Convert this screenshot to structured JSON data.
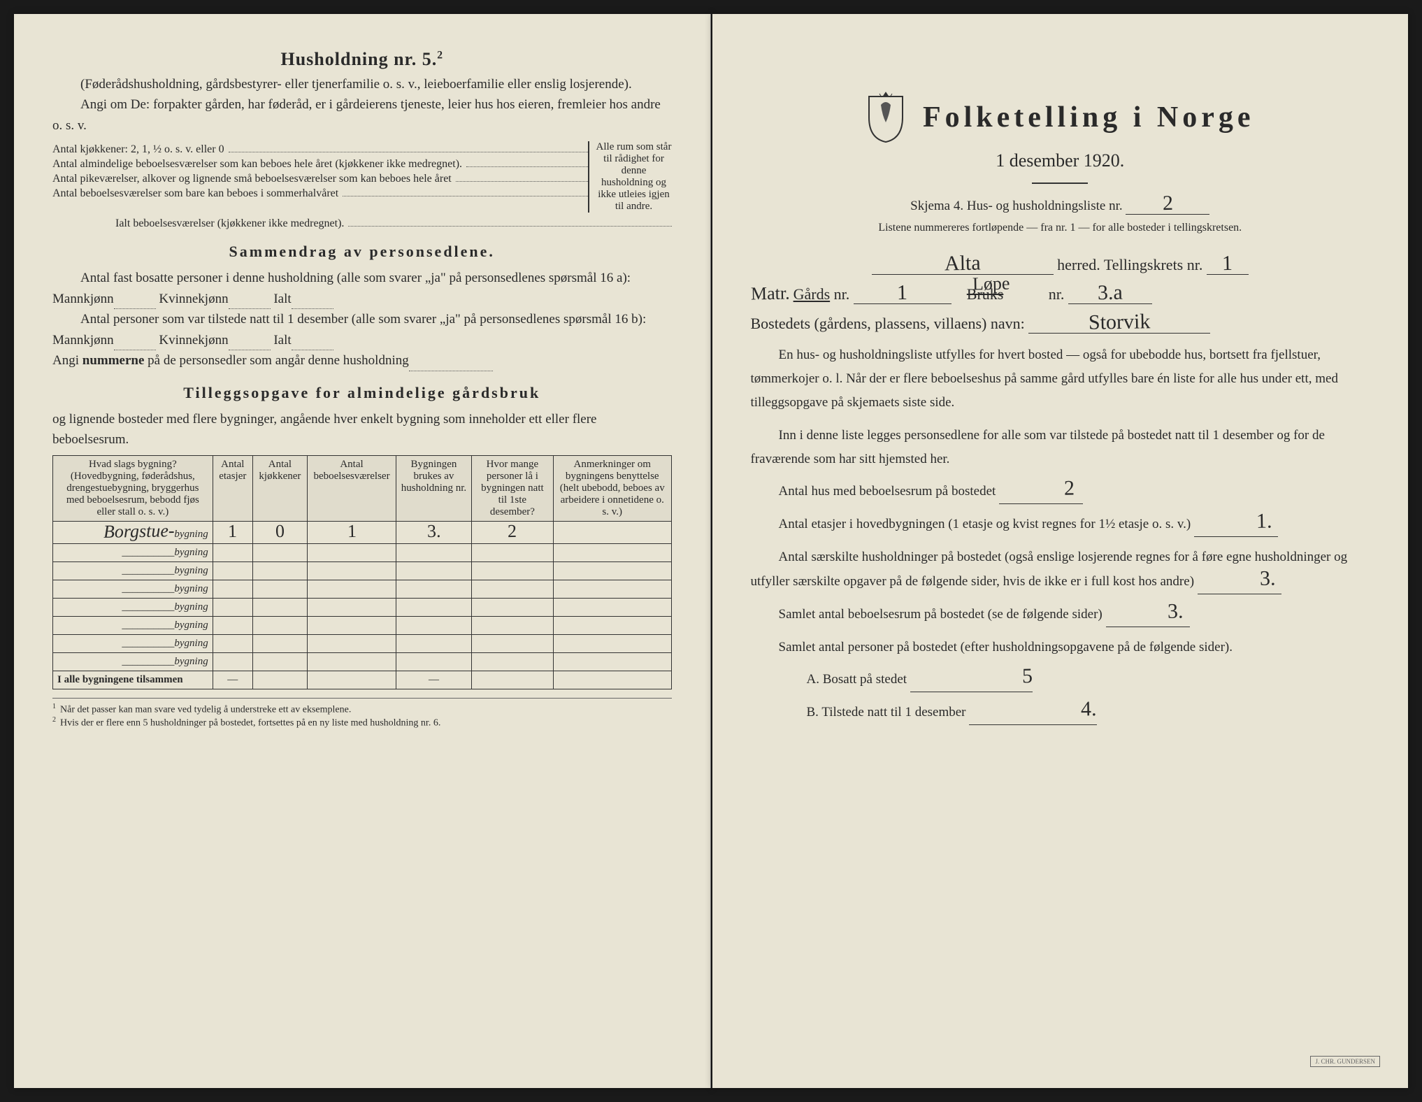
{
  "left": {
    "heading": "Husholdning nr. 5.",
    "heading_sup": "2",
    "intro1": "(Føderådshusholdning, gårdsbestyrer- eller tjenerfamilie o. s. v., leieboerfamilie eller enslig losjerende).",
    "intro2": "Angi om De: forpakter gården, har føderåd, er i gårdeierens tjeneste, leier hus hos eieren, fremleier hos andre o. s. v.",
    "room_lines": [
      "Antal kjøkkener: 2, 1, ½ o. s. v. eller 0",
      "Antal almindelige beboelsesværelser som kan beboes hele året (kjøkkener ikke medregnet).",
      "Antal pikeværelser, alkover og lignende små beboelsesværelser som kan beboes hele året",
      "Antal beboelsesværelser som bare kan beboes i sommerhalvåret"
    ],
    "brace_text": "Alle rum som står til rådighet for denne husholdning og ikke utleies igjen til andre.",
    "ialt_line": "Ialt beboelsesværelser  (kjøkkener ikke medregnet).",
    "summary_heading": "Sammendrag av personsedlene.",
    "summary_l1": "Antal fast bosatte personer i denne husholdning (alle som svarer „ja\" på personsedlenes spørsmål 16 a): Mannkjønn",
    "summary_kv": "Kvinnekjønn",
    "summary_ialt": "Ialt",
    "summary_l2": "Antal personer som var tilstede natt til 1 desember (alle som svarer „ja\" på personsedlenes spørsmål 16 b): Mannkjønn",
    "summary_l3_a": "Angi ",
    "summary_l3_b": "nummerne",
    "summary_l3_c": " på de personsedler som angår denne husholdning",
    "supp_heading": "Tilleggsopgave for almindelige gårdsbruk",
    "supp_intro": "og lignende bosteder med flere bygninger, angående hver enkelt bygning som inneholder ett eller flere beboelsesrum.",
    "table": {
      "headers": [
        "Hvad slags bygning?\n(Hovedbygning, føderådshus, drengestuebygning, bryggerhus med beboelsesrum, bebodd fjøs eller stall o. s. v.)",
        "Antal etasjer",
        "Antal kjøkkener",
        "Antal beboelsesværelser",
        "Bygningen brukes av husholdning nr.",
        "Hvor mange personer lå i bygningen natt til 1ste desember?",
        "Anmerkninger om bygningens benyttelse (helt ubebodd, beboes av arbeidere i onnetidene o. s. v.)"
      ],
      "rows": [
        {
          "name": "Borgstue-",
          "suffix": "bygning",
          "etasjer": "1",
          "kjokken": "0",
          "vaer": "1",
          "hush": "3.",
          "pers": "2",
          "anm": ""
        },
        {
          "name": "",
          "suffix": "bygning",
          "etasjer": "",
          "kjokken": "",
          "vaer": "",
          "hush": "",
          "pers": "",
          "anm": ""
        },
        {
          "name": "",
          "suffix": "bygning",
          "etasjer": "",
          "kjokken": "",
          "vaer": "",
          "hush": "",
          "pers": "",
          "anm": ""
        },
        {
          "name": "",
          "suffix": "bygning",
          "etasjer": "",
          "kjokken": "",
          "vaer": "",
          "hush": "",
          "pers": "",
          "anm": ""
        },
        {
          "name": "",
          "suffix": "bygning",
          "etasjer": "",
          "kjokken": "",
          "vaer": "",
          "hush": "",
          "pers": "",
          "anm": ""
        },
        {
          "name": "",
          "suffix": "bygning",
          "etasjer": "",
          "kjokken": "",
          "vaer": "",
          "hush": "",
          "pers": "",
          "anm": ""
        },
        {
          "name": "",
          "suffix": "bygning",
          "etasjer": "",
          "kjokken": "",
          "vaer": "",
          "hush": "",
          "pers": "",
          "anm": ""
        },
        {
          "name": "",
          "suffix": "bygning",
          "etasjer": "",
          "kjokken": "",
          "vaer": "",
          "hush": "",
          "pers": "",
          "anm": ""
        }
      ],
      "total_label": "I alle bygningene tilsammen",
      "dash": "—"
    },
    "footnote1": "Når det passer kan man svare ved tydelig å understreke ett av eksemplene.",
    "footnote2": "Hvis der er flere enn 5 husholdninger på bostedet, fortsettes på en ny liste med husholdning nr. 6."
  },
  "right": {
    "title": "Folketelling i Norge",
    "date": "1 desember 1920.",
    "form_label_a": "Skjema 4.  Hus- og husholdningsliste nr.",
    "form_nr": "2",
    "note": "Listene nummereres fortløpende — fra nr. 1 — for alle bosteder i tellingskretsen.",
    "herred_val": "Alta",
    "herred_label": "herred.   Tellingskrets nr.",
    "krets_nr": "1",
    "matr_label": "Matr. ",
    "gards_label": "Gårds",
    "gards_nr": "1",
    "bruks_label_struck": "Bruks",
    "lope_label": "Løpe",
    "bruks_nr": "3.a",
    "nr_label": " nr.",
    "bosted_label": "Bostedets (gårdens, plassens, villaens) navn:",
    "bosted_val": "Storvik",
    "para1": "En hus- og husholdningsliste utfylles for hvert bosted — også for ubebodde hus, bortsett fra fjellstuer, tømmerkojer o. l.  Når der er flere beboelseshus på samme gård utfylles bare én liste for alle hus under ett, med tilleggsopgave på skjemaets siste side.",
    "para2": "Inn i denne liste legges personsedlene for alle som var tilstede på bostedet natt til 1 desember og for de fraværende som har sitt hjemsted her.",
    "q1": "Antal hus med beboelsesrum på bostedet",
    "q1_val": "2",
    "q2": "Antal etasjer i hovedbygningen (1 etasje og kvist regnes for 1½ etasje o. s. v.)",
    "q2_val": "1.",
    "q3": "Antal særskilte husholdninger på bostedet (også enslige losjerende regnes for å føre egne husholdninger og utfyller særskilte opgaver på de følgende sider, hvis de ikke er i full kost hos andre)",
    "q3_val": "3.",
    "q4": "Samlet antal beboelsesrum på bostedet (se de følgende sider)",
    "q4_val": "3.",
    "q5": "Samlet antal personer på bostedet (efter husholdningsopgavene på de følgende sider).",
    "qA": "A.  Bosatt på stedet",
    "qA_val": "5",
    "qB": "B.  Tilstede natt til 1 desember",
    "qB_val": "4.",
    "stamp": "J. CHR. GUNDERSEN"
  },
  "colors": {
    "paper": "#e8e4d4",
    "ink": "#2a2a2a",
    "bg": "#1a1a1a"
  }
}
